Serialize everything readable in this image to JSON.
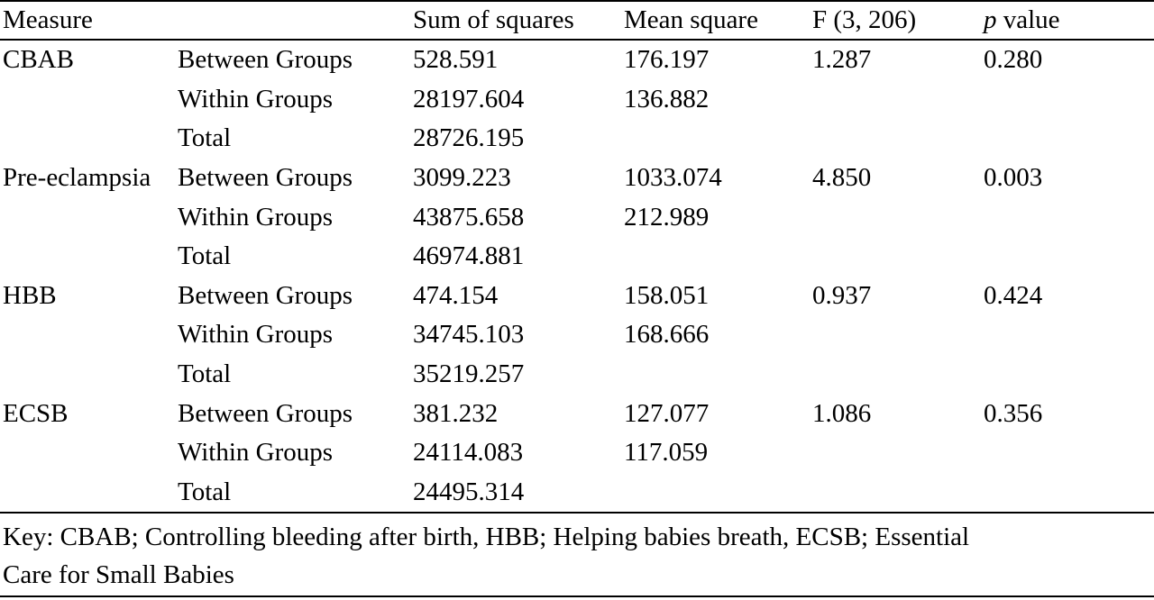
{
  "table": {
    "headers": {
      "measure": "Measure",
      "source": "",
      "sum_of_squares": "Sum of squares",
      "mean_square": "Mean square",
      "f_stat": "F (3, 206)",
      "p_italic": "p",
      "p_rest": " value"
    },
    "rows": [
      {
        "measure": "CBAB",
        "source": "Between Groups",
        "ss": "528.591",
        "ms": "176.197",
        "f": "1.287",
        "p": "0.280"
      },
      {
        "measure": "",
        "source": "Within Groups",
        "ss": "28197.604",
        "ms": "136.882",
        "f": "",
        "p": ""
      },
      {
        "measure": "",
        "source": "Total",
        "ss": "28726.195",
        "ms": "",
        "f": "",
        "p": ""
      },
      {
        "measure": "Pre-eclampsia",
        "source": "Between Groups",
        "ss": "3099.223",
        "ms": "1033.074",
        "f": "4.850",
        "p": "0.003"
      },
      {
        "measure": "",
        "source": "Within Groups",
        "ss": "43875.658",
        "ms": "212.989",
        "f": "",
        "p": ""
      },
      {
        "measure": "",
        "source": "Total",
        "ss": "46974.881",
        "ms": "",
        "f": "",
        "p": ""
      },
      {
        "measure": "HBB",
        "source": "Between Groups",
        "ss": "474.154",
        "ms": "158.051",
        "f": "0.937",
        "p": "0.424"
      },
      {
        "measure": "",
        "source": "Within Groups",
        "ss": "34745.103",
        "ms": "168.666",
        "f": "",
        "p": ""
      },
      {
        "measure": "",
        "source": "Total",
        "ss": "35219.257",
        "ms": "",
        "f": "",
        "p": ""
      },
      {
        "measure": "ECSB",
        "source": "Between Groups",
        "ss": "381.232",
        "ms": "127.077",
        "f": "1.086",
        "p": "0.356"
      },
      {
        "measure": "",
        "source": "Within Groups",
        "ss": "24114.083",
        "ms": "117.059",
        "f": "",
        "p": ""
      },
      {
        "measure": "",
        "source": "Total",
        "ss": "24495.314",
        "ms": "",
        "f": "",
        "p": ""
      }
    ]
  },
  "footnote": {
    "line1": "Key: CBAB; Controlling bleeding after birth, HBB; Helping babies breath, ECSB; Essential",
    "line2": "Care for Small Babies"
  }
}
